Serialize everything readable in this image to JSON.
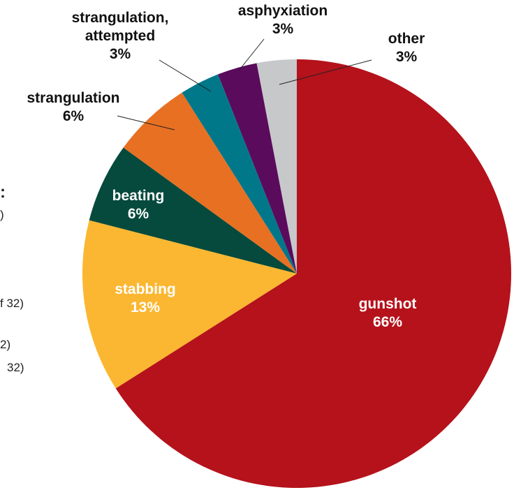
{
  "chart_data": {
    "type": "pie",
    "categories": [
      "gunshot",
      "stabbing",
      "beating",
      "strangulation",
      "strangulation, attempted",
      "asphyxiation",
      "other"
    ],
    "values": [
      66,
      13,
      6,
      6,
      3,
      3,
      3
    ],
    "value_labels": [
      "66%",
      "13%",
      "6%",
      "6%",
      "3%",
      "3%",
      "3%"
    ],
    "colors": [
      "#b5121b",
      "#fbb731",
      "#054a3c",
      "#e87022",
      "#00788a",
      "#5a0b5c",
      "#c7c8ca"
    ],
    "annotations": [
      ":",
      ")",
      "f 32)",
      "2)",
      "32)"
    ]
  }
}
